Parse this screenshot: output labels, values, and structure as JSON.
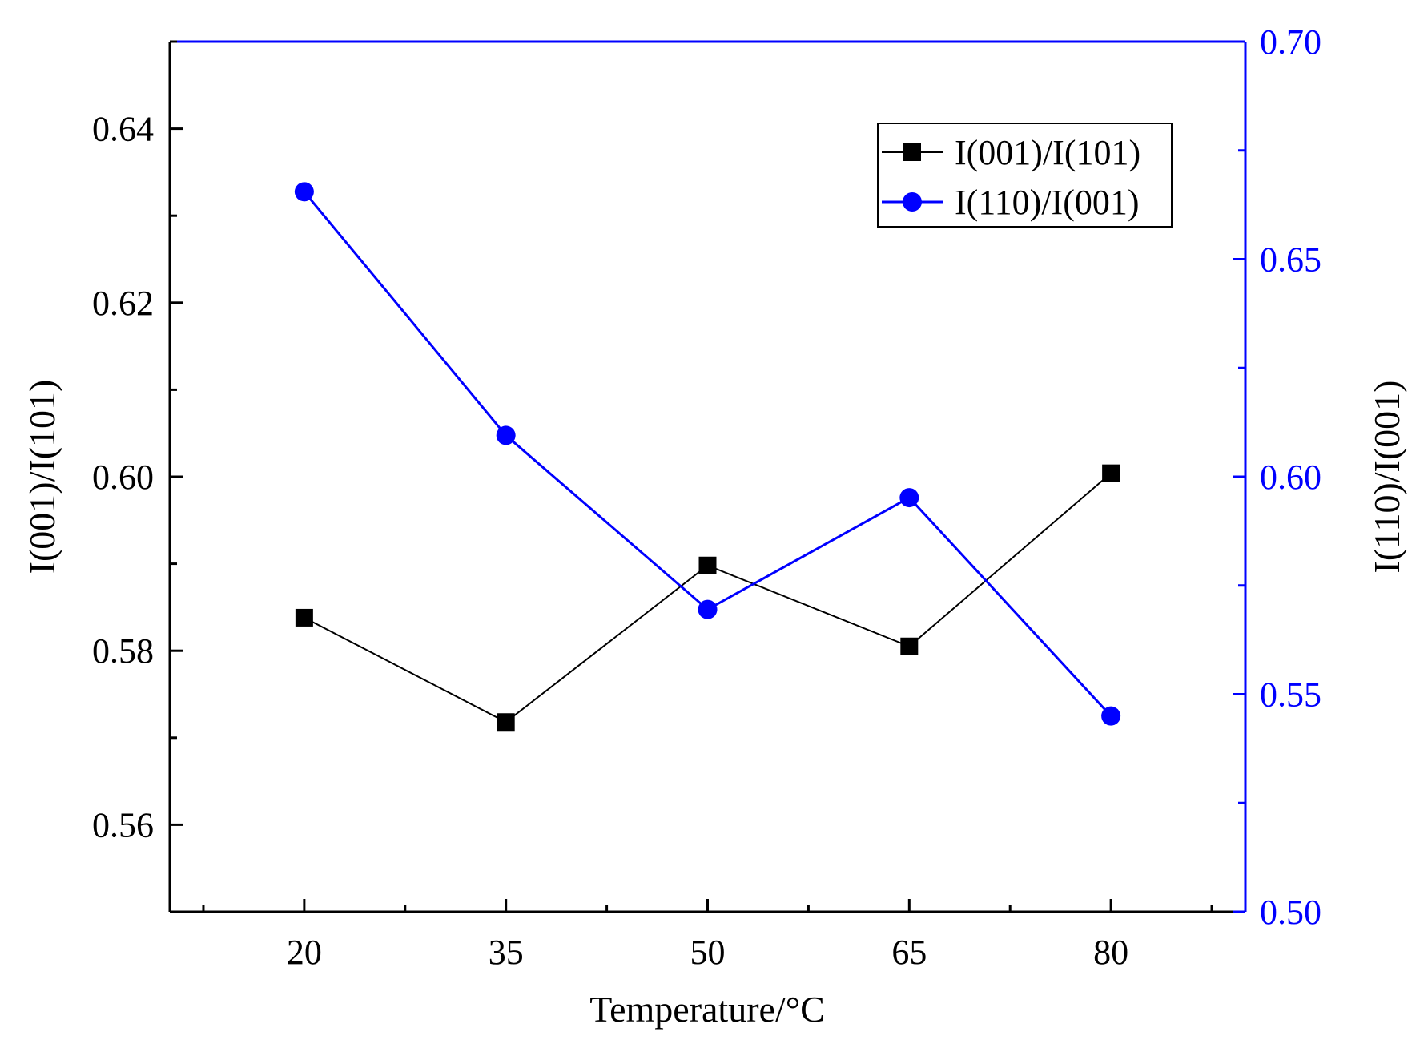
{
  "chart_data": {
    "type": "line",
    "x": [
      20,
      35,
      50,
      65,
      80
    ],
    "xlabel": "Temperature/°C",
    "xlim": [
      10,
      90
    ],
    "x_ticks": [
      "20",
      "35",
      "50",
      "65",
      "80"
    ],
    "series": [
      {
        "name": "I(001)/I(101)",
        "axis": "left",
        "marker": "square",
        "color": "#000000",
        "values": [
          0.5838,
          0.5718,
          0.5898,
          0.5805,
          0.6004
        ]
      },
      {
        "name": "I(110)/I(001)",
        "axis": "right",
        "marker": "circle",
        "color": "#0000ff",
        "values": [
          0.6655,
          0.6095,
          0.5695,
          0.5952,
          0.545
        ]
      }
    ],
    "y_left": {
      "label": "I(001)/I(101)",
      "ylim": [
        0.55,
        0.65
      ],
      "ticks": [
        "0.56",
        "0.58",
        "0.60",
        "0.62",
        "0.64"
      ],
      "color": "#000000"
    },
    "y_right": {
      "label": "I(110)/I(001)",
      "ylim": [
        0.5,
        0.7
      ],
      "ticks": [
        "0.50",
        "0.55",
        "0.60",
        "0.65",
        "0.70"
      ],
      "color": "#0000ff"
    },
    "legend": {
      "position": "top-right"
    },
    "grid": false
  }
}
